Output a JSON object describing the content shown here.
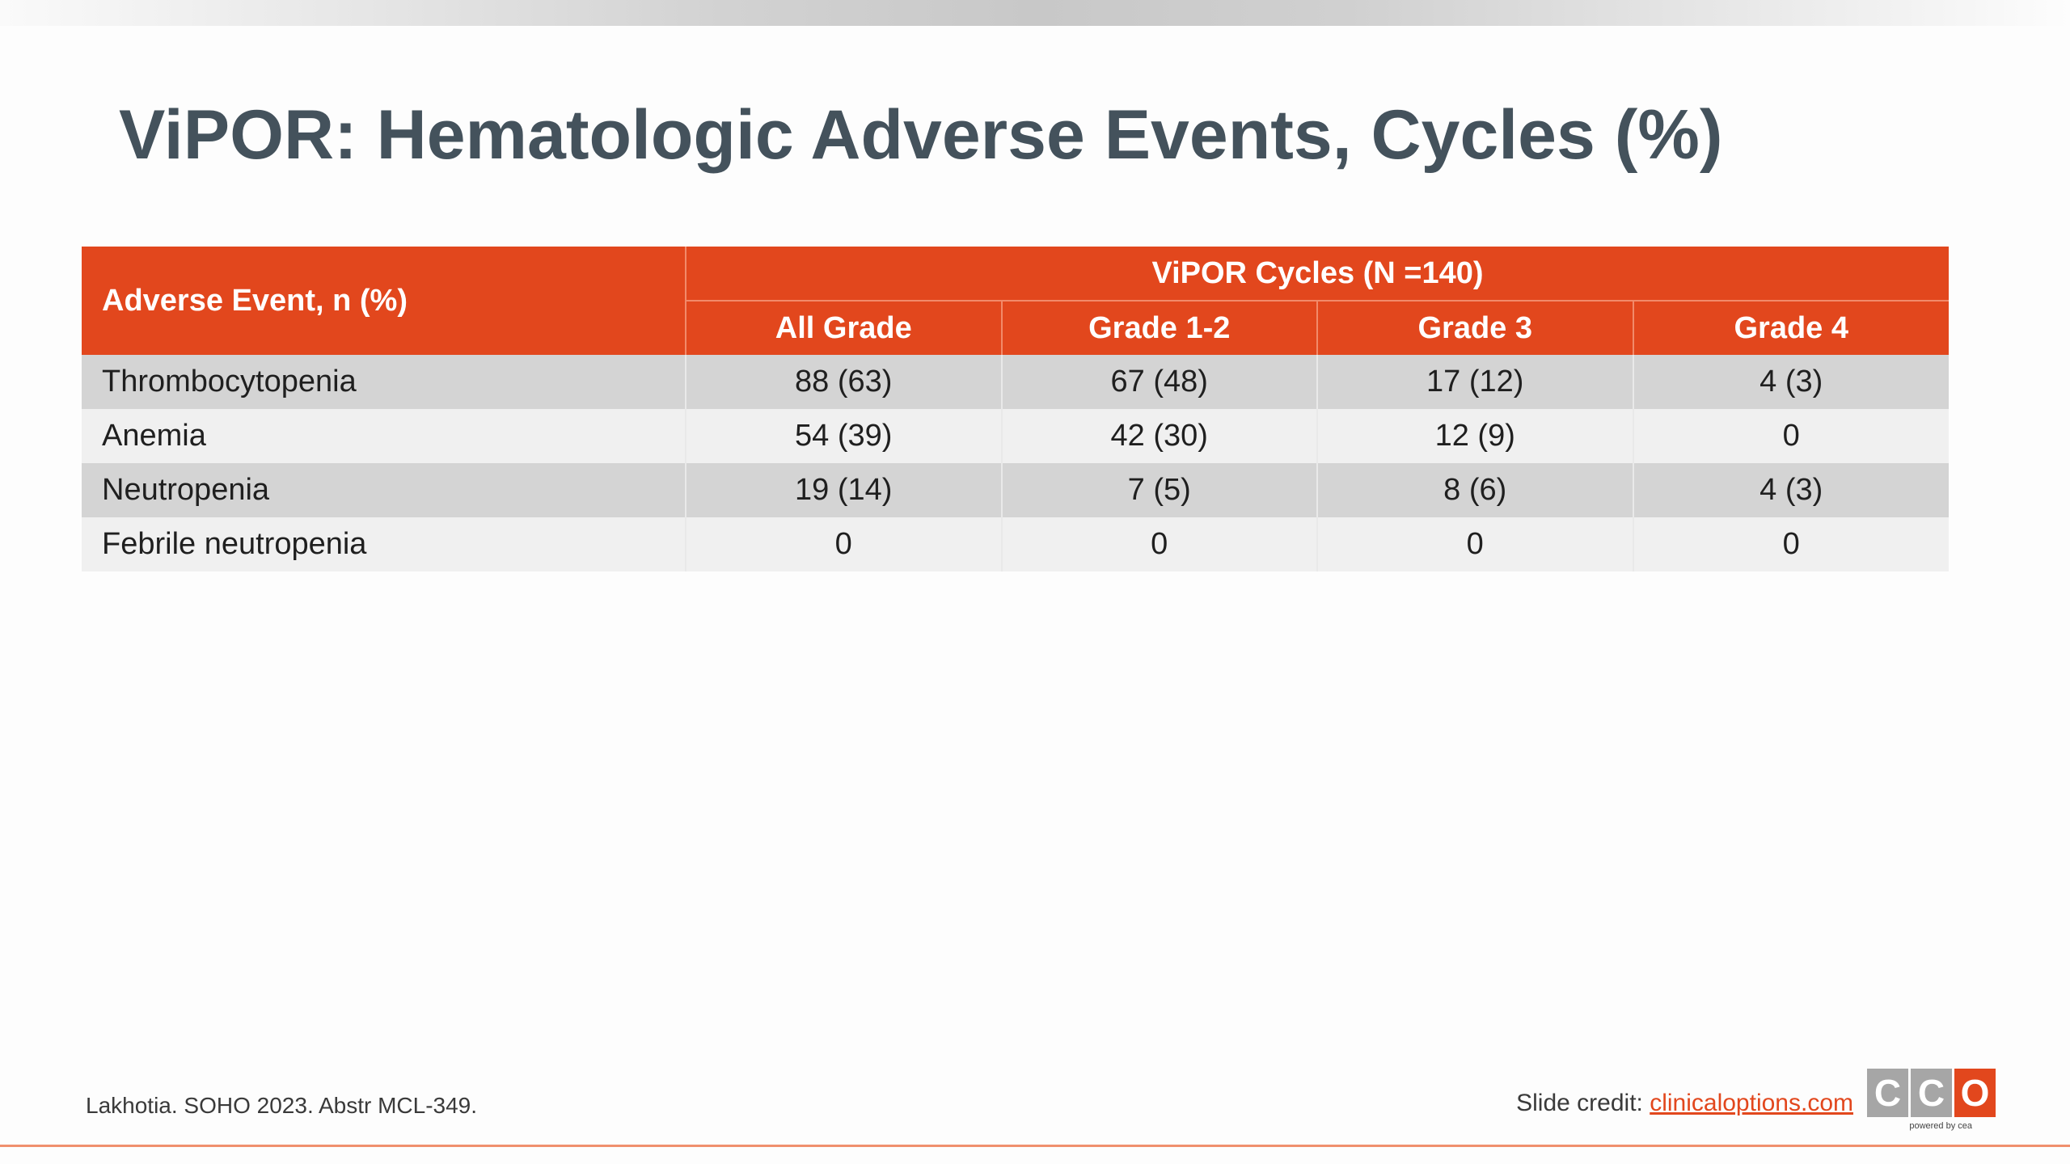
{
  "slide": {
    "title": "ViPOR: Hematologic Adverse Events, Cycles (%)"
  },
  "table": {
    "row_header": "Adverse Event, n (%)",
    "group_header": "ViPOR Cycles (N =140)",
    "columns": [
      "All Grade",
      "Grade 1-2",
      "Grade 3",
      "Grade 4"
    ],
    "rows": [
      {
        "event": "Thrombocytopenia",
        "values": [
          "88 (63)",
          "67 (48)",
          "17 (12)",
          "4 (3)"
        ]
      },
      {
        "event": "Anemia",
        "values": [
          "54 (39)",
          "42 (30)",
          "12 (9)",
          "0"
        ]
      },
      {
        "event": "Neutropenia",
        "values": [
          "19 (14)",
          "7 (5)",
          "8 (6)",
          "4 (3)"
        ]
      },
      {
        "event": "Febrile neutropenia",
        "values": [
          "0",
          "0",
          "0",
          "0"
        ]
      }
    ]
  },
  "footer": {
    "citation": "Lakhotia. SOHO 2023. Abstr MCL-349.",
    "credit_label": "Slide credit:",
    "credit_link": "clinicaloptions.com"
  },
  "logo": {
    "letters": [
      "C",
      "C",
      "O"
    ],
    "tagline": "powered by cea"
  },
  "colors": {
    "header_bg": "#e2471d",
    "title": "#44525c",
    "row_odd": "#d4d4d4",
    "row_even": "#f0f0f0",
    "link": "#e2471d"
  }
}
